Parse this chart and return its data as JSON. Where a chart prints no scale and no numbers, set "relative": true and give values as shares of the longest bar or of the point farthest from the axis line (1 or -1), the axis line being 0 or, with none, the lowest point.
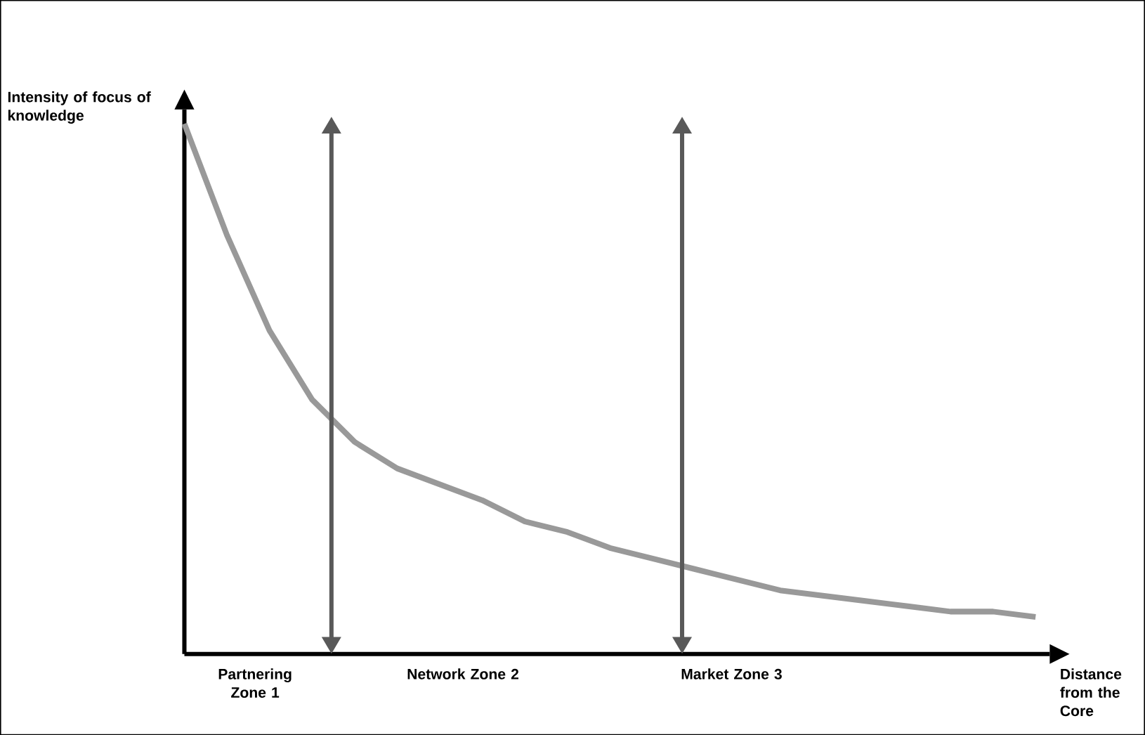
{
  "chart_data": {
    "type": "line",
    "relative": true,
    "xlabel": "Distance from the Core",
    "ylabel": "Intensity of focus of knowledge",
    "categories": [
      null,
      null,
      null,
      null,
      null,
      null,
      null,
      null,
      null,
      null,
      null,
      null,
      null,
      null,
      null,
      null,
      null,
      null,
      null,
      null,
      null
    ],
    "series": [
      {
        "color": "#999999",
        "values": [
          1,
          0.79,
          0.61,
          0.48,
          0.4,
          0.35,
          0.32,
          0.29,
          0.25,
          0.23,
          0.2,
          0.18,
          0.16,
          0.14,
          0.12,
          0.11,
          0.1,
          0.09,
          0.08,
          0.08,
          0.07
        ]
      }
    ],
    "annotations": [
      "Partnering Zone 1",
      "Network Zone 2",
      "Market Zone 3"
    ],
    "marker": "none",
    "line_style": "solid"
  }
}
